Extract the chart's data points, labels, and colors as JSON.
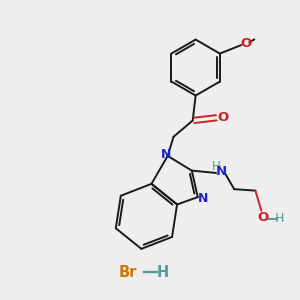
{
  "background_color": "#eeeeee",
  "bond_color": "#1a1a1a",
  "N_color": "#2222cc",
  "O_color": "#cc2222",
  "Br_color": "#cc7700",
  "NH_color": "#559999",
  "lw": 1.4,
  "xlim": [
    0,
    10
  ],
  "ylim": [
    0,
    10
  ],
  "HBr_x": 4.8,
  "HBr_y": 0.85
}
